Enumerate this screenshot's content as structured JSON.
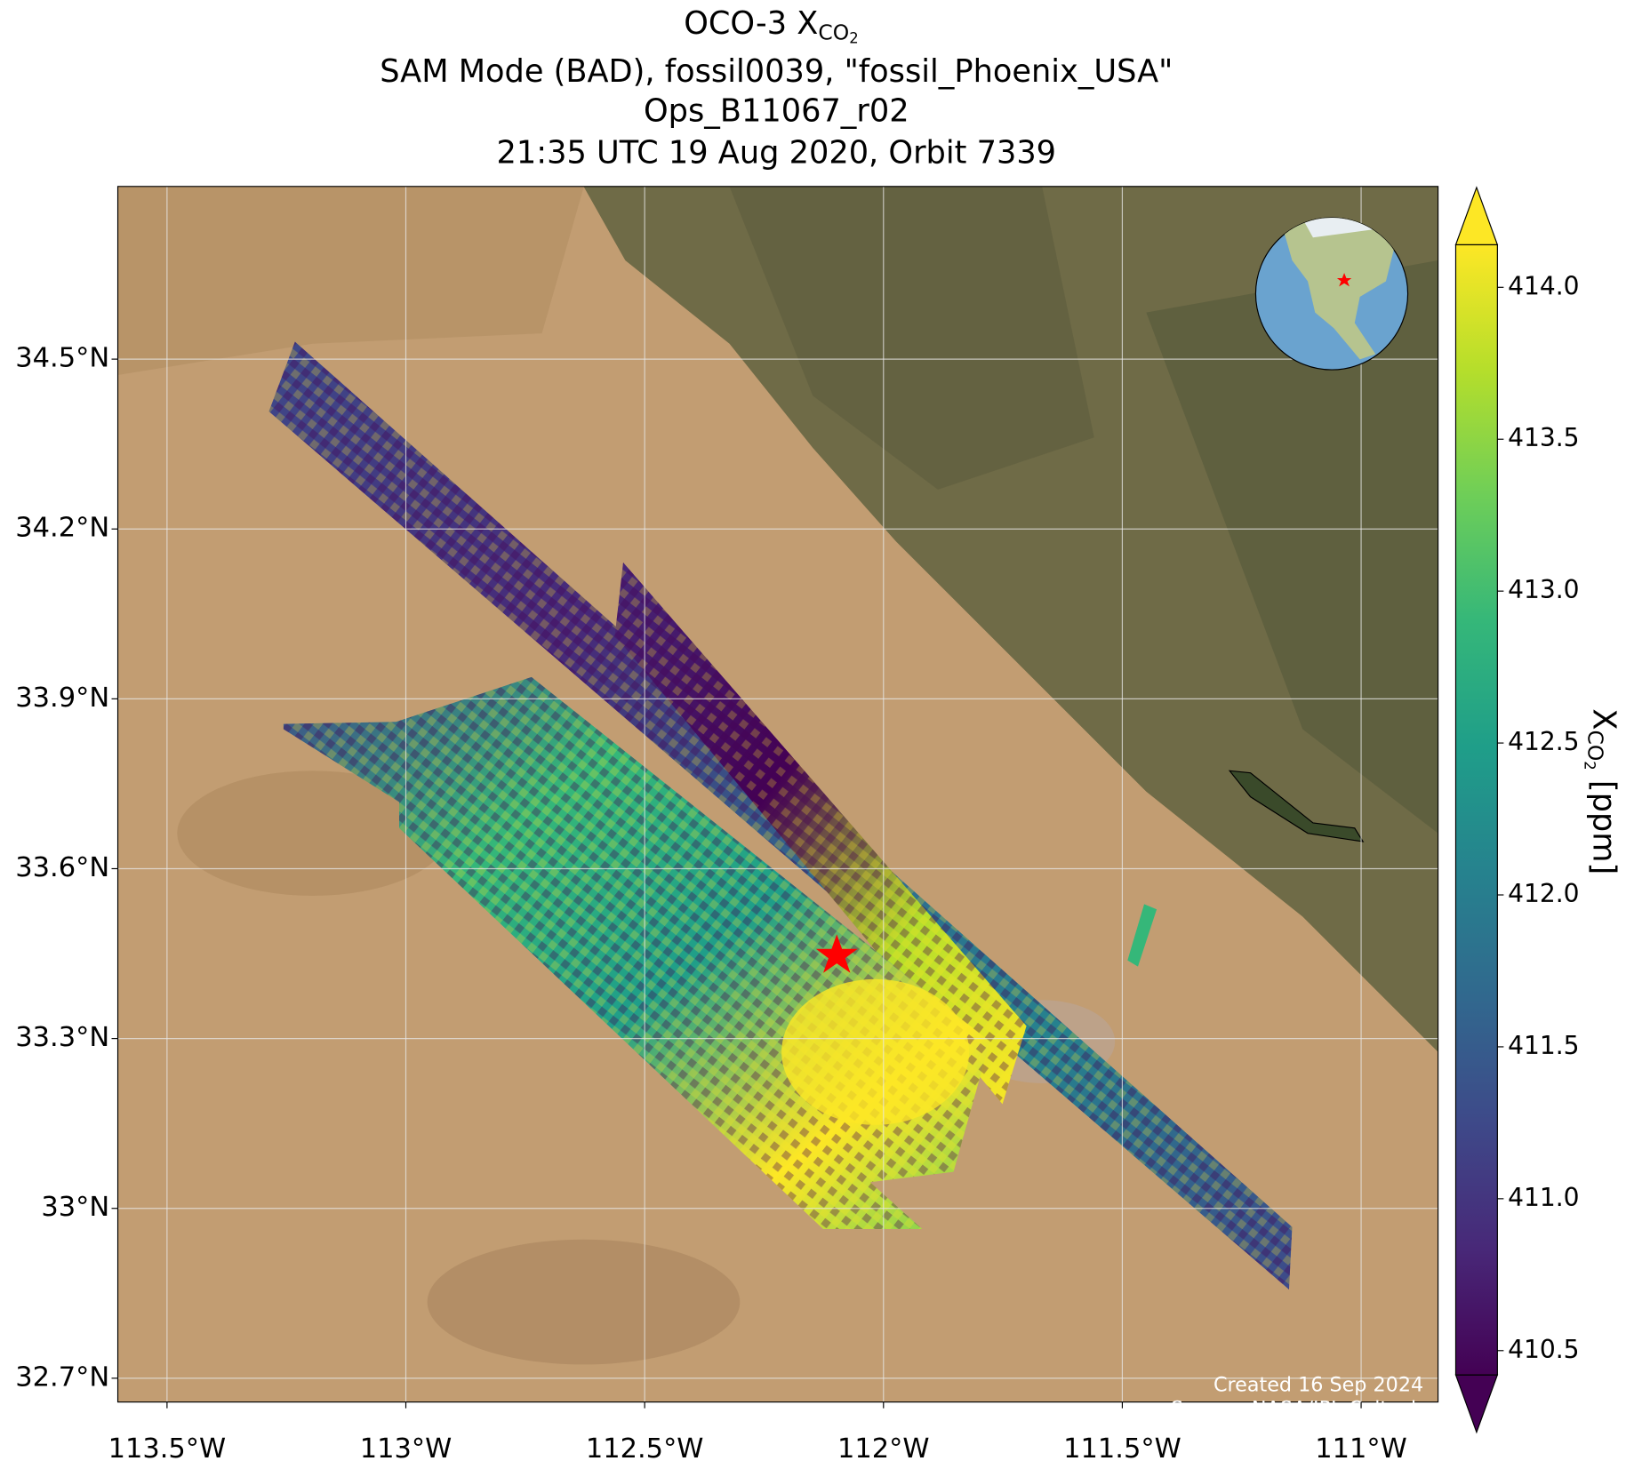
{
  "map": {
    "title": {
      "text": "OCO-3 X",
      "sub": "CO",
      "subsub": "2"
    },
    "subtitle": [
      "SAM Mode (BAD), fossil0039, \"fossil_Phoenix_USA\"",
      "Ops_B11067_r02",
      "21:35 UTC 19 Aug 2020, Orbit 7339"
    ],
    "xlim": [
      -113.603,
      -110.839
    ],
    "ylim": [
      32.658,
      34.805
    ],
    "xticks": [
      {
        "value": -113.5,
        "label": "113.5°W"
      },
      {
        "value": -113,
        "label": "113°W"
      },
      {
        "value": -112.5,
        "label": "112.5°W"
      },
      {
        "value": -112,
        "label": "112°W"
      },
      {
        "value": -111.5,
        "label": "111.5°W"
      },
      {
        "value": -111,
        "label": "111°W"
      }
    ],
    "yticks": [
      {
        "value": 32.7,
        "label": "32.7°N"
      },
      {
        "value": 33,
        "label": "33°N"
      },
      {
        "value": 33.3,
        "label": "33.3°N"
      },
      {
        "value": 33.6,
        "label": "33.6°N"
      },
      {
        "value": 33.9,
        "label": "33.9°N"
      },
      {
        "value": 34.2,
        "label": "34.2°N"
      },
      {
        "value": 34.5,
        "label": "34.5°N"
      }
    ],
    "grid": true,
    "credits": [
      "Created 16 Sep 2024",
      "Source: NASA/JPL-Caltech"
    ]
  },
  "colorbar": {
    "label": {
      "text": "X",
      "sub": "CO",
      "subsub": "2",
      "unit": " [ppm]"
    },
    "clim": [
      410.42,
      414.14
    ],
    "ticks": [
      {
        "value": 410.5,
        "label": "410.5"
      },
      {
        "value": 411,
        "label": "411.0"
      },
      {
        "value": 411.5,
        "label": "411.5"
      },
      {
        "value": 412,
        "label": "412.0"
      },
      {
        "value": 412.5,
        "label": "412.5"
      },
      {
        "value": 413,
        "label": "413.0"
      },
      {
        "value": 413.5,
        "label": "413.5"
      },
      {
        "value": 414,
        "label": "414.0"
      }
    ],
    "colormap": [
      "#440154",
      "#482878",
      "#3e4989",
      "#31688e",
      "#26828e",
      "#1f9e89",
      "#35b779",
      "#6ece58",
      "#b5de2b",
      "#fde725"
    ]
  }
}
